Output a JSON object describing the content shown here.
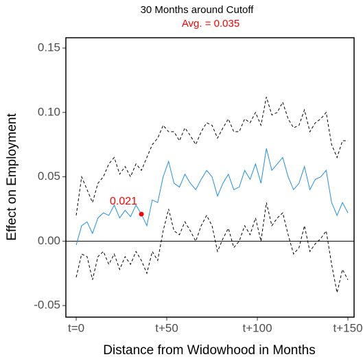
{
  "chart_data": {
    "type": "line",
    "title": "30 Months around Cutoff",
    "subtitle": "Avg. =  0.035",
    "subtitle_color": "#ff0000",
    "xlabel": "Distance from Widowhood in Months",
    "ylabel": "Effect on Employment",
    "x": [
      0,
      3,
      6,
      9,
      12,
      15,
      18,
      21,
      24,
      27,
      30,
      33,
      36,
      39,
      42,
      45,
      48,
      51,
      54,
      57,
      60,
      63,
      66,
      69,
      72,
      75,
      78,
      81,
      84,
      87,
      90,
      93,
      96,
      99,
      102,
      105,
      108,
      111,
      114,
      117,
      120,
      123,
      126,
      129,
      132,
      135,
      138,
      141,
      144,
      147,
      150
    ],
    "series": [
      {
        "color": "#000000",
        "dashed": true,
        "values": [
          0.02,
          0.05,
          0.04,
          0.03,
          0.045,
          0.05,
          0.06,
          0.065,
          0.052,
          0.058,
          0.05,
          0.06,
          0.055,
          0.065,
          0.075,
          0.08,
          0.09,
          0.085,
          0.085,
          0.078,
          0.088,
          0.082,
          0.075,
          0.085,
          0.092,
          0.09,
          0.08,
          0.088,
          0.095,
          0.085,
          0.085,
          0.095,
          0.092,
          0.1,
          0.09,
          0.112,
          0.098,
          0.1,
          0.108,
          0.095,
          0.088,
          0.09,
          0.102,
          0.085,
          0.092,
          0.095,
          0.1,
          0.075,
          0.065,
          0.078,
          0.078
        ]
      },
      {
        "color": "#000000",
        "dashed": true,
        "values": [
          -0.028,
          -0.01,
          -0.012,
          -0.03,
          -0.012,
          -0.008,
          -0.018,
          -0.01,
          -0.022,
          -0.012,
          -0.018,
          -0.008,
          -0.015,
          -0.025,
          -0.008,
          -0.015,
          0.008,
          0.025,
          0.008,
          0.005,
          0.015,
          0.008,
          0.0,
          0.012,
          0.02,
          0.012,
          -0.008,
          0.002,
          0.01,
          -0.005,
          0.0,
          0.012,
          0.005,
          0.018,
          0.0,
          0.03,
          0.012,
          0.018,
          0.022,
          0.005,
          -0.01,
          -0.005,
          0.012,
          -0.008,
          -0.002,
          0.002,
          0.008,
          -0.018,
          -0.04,
          -0.022,
          -0.03
        ]
      },
      {
        "color": "#1e90e6",
        "dashed": false,
        "values": [
          -0.003,
          0.012,
          0.015,
          0.006,
          0.018,
          0.022,
          0.02,
          0.028,
          0.018,
          0.024,
          0.019,
          0.028,
          0.021,
          0.012,
          0.032,
          0.03,
          0.05,
          0.062,
          0.045,
          0.042,
          0.052,
          0.045,
          0.04,
          0.048,
          0.055,
          0.05,
          0.035,
          0.045,
          0.052,
          0.04,
          0.042,
          0.055,
          0.048,
          0.06,
          0.045,
          0.072,
          0.055,
          0.06,
          0.065,
          0.05,
          0.04,
          0.045,
          0.058,
          0.04,
          0.048,
          0.05,
          0.055,
          0.03,
          0.02,
          0.03,
          0.022
        ]
      }
    ],
    "hline": 0,
    "annotation": {
      "text": "0.021",
      "x": 36,
      "y": 0.021,
      "color": "#ff0000"
    },
    "xlim": [
      -5.7,
      153.4
    ],
    "ylim": [
      -0.059,
      0.158
    ],
    "xticks": [
      {
        "value": 0,
        "label": "t=0"
      },
      {
        "value": 50,
        "label": "t+50"
      },
      {
        "value": 100,
        "label": "t+100"
      },
      {
        "value": 150,
        "label": "t+150"
      }
    ],
    "yticks": [
      -0.05,
      {
        "value": 0,
        "label": "0.00"
      },
      0.05,
      {
        "value": 0.1,
        "label": "0.10"
      },
      0.15
    ],
    "grid": false
  }
}
